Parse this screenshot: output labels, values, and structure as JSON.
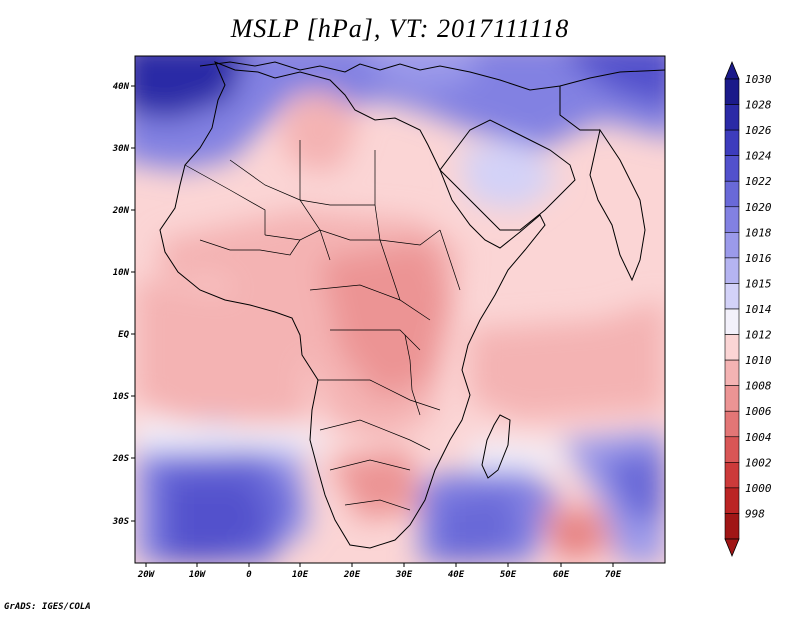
{
  "title": "MSLP [hPa], VT: 2017111118",
  "credit": "GrADS: IGES/COLA",
  "axes": {
    "lat_labels": [
      "40N",
      "30N",
      "20N",
      "10N",
      "EQ",
      "10S",
      "20S",
      "30S"
    ],
    "lon_labels": [
      "20W",
      "10W",
      "0",
      "10E",
      "20E",
      "30E",
      "40E",
      "50E",
      "60E",
      "70E"
    ]
  },
  "colorbar": {
    "levels": [
      "1030",
      "1028",
      "1026",
      "1024",
      "1022",
      "1020",
      "1018",
      "1016",
      "1015",
      "1014",
      "1012",
      "1010",
      "1008",
      "1006",
      "1004",
      "1002",
      "1000",
      "998"
    ],
    "colors": [
      "#1b1a8a",
      "#2b2aa6",
      "#3d3cbd",
      "#5251cc",
      "#6969d8",
      "#8281e2",
      "#9b9aea",
      "#b5b4f1",
      "#d3d2f8",
      "#f3f1fb",
      "#fbd5d5",
      "#f4b3b3",
      "#ec9494",
      "#e37676",
      "#d95656",
      "#cc3a3a",
      "#bb2424",
      "#a01616"
    ]
  },
  "colors": {
    "ocean_north": "#6464d6",
    "deep_blue": "#2b2aa6",
    "land_border": "#000000"
  }
}
